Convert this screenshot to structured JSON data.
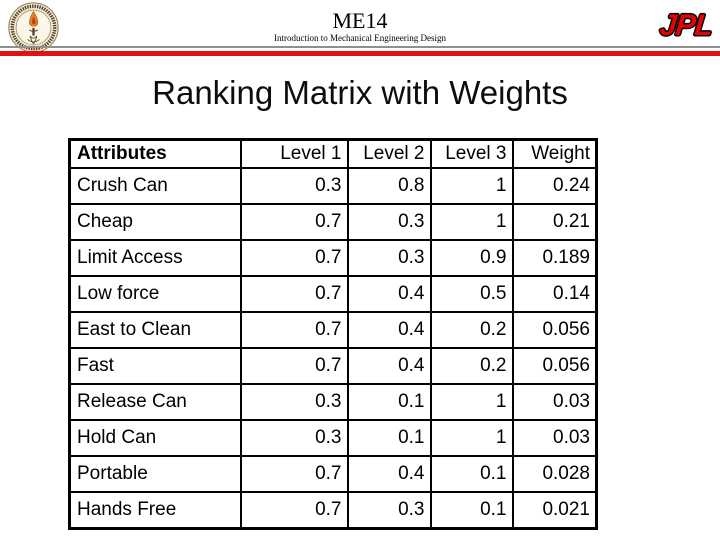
{
  "header": {
    "course_code": "ME14",
    "course_subtitle": "Introduction to Mechanical Engineering Design",
    "jpl_logo_text": "JPL",
    "seal_icon": "caltech-seal-icon"
  },
  "title": "Ranking Matrix with Weights",
  "table": {
    "columns": [
      "Attributes",
      "Level 1",
      "Level 2",
      "Level 3",
      "Weight"
    ],
    "rows": [
      [
        "Crush Can",
        "0.3",
        "0.8",
        "1",
        "0.24"
      ],
      [
        "Cheap",
        "0.7",
        "0.3",
        "1",
        "0.21"
      ],
      [
        "Limit Access",
        "0.7",
        "0.3",
        "0.9",
        "0.189"
      ],
      [
        "Low force",
        "0.7",
        "0.4",
        "0.5",
        "0.14"
      ],
      [
        "East to Clean",
        "0.7",
        "0.4",
        "0.2",
        "0.056"
      ],
      [
        "Fast",
        "0.7",
        "0.4",
        "0.2",
        "0.056"
      ],
      [
        "Release Can",
        "0.3",
        "0.1",
        "1",
        "0.03"
      ],
      [
        "Hold Can",
        "0.3",
        "0.1",
        "1",
        "0.03"
      ],
      [
        "Portable",
        "0.7",
        "0.4",
        "0.1",
        "0.028"
      ],
      [
        "Hands Free",
        "0.7",
        "0.3",
        "0.1",
        "0.021"
      ]
    ]
  },
  "colors": {
    "accent_red": "#e01312",
    "jpl_red": "#e00404",
    "separator_gray": "#8f8f8f",
    "seal_cream": "#f2e8d0",
    "seal_brown": "#5a4527",
    "flame_orange": "#e8821e"
  }
}
